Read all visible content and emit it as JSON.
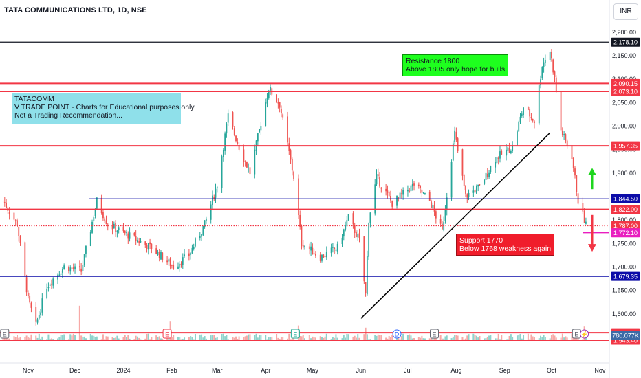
{
  "header": {
    "symbol_title": "TATA COMMUNICATIONS LTD, 1D, NSE",
    "currency": "INR"
  },
  "notes": {
    "info": [
      "TATACOMM",
      "V TRADE POINT - Charts for Educational purposes only.",
      "Not a Trading Recommendation..."
    ],
    "resistance": [
      "Resistance 1800",
      "Above 1805 only hope for bulls"
    ],
    "support": [
      "Support 1770",
      "Below 1768 weakness again"
    ]
  },
  "colors": {
    "up": "#26a69a",
    "down": "#ef5350",
    "vol_up": "#8fd3cc",
    "vol_down": "#f7a9a7",
    "red_line": "#f23645",
    "blue_line": "#0c0ca8",
    "magenta": "#e91ebf",
    "green_arrow": "#1fd61f",
    "trend_line": "#000000",
    "axis_text": "#131722"
  },
  "chart_data": {
    "type": "candlestick",
    "ylim": [
      1520,
      2215
    ],
    "y_ticks": [
      1600,
      1650,
      1700,
      1750,
      1800,
      1850,
      1900,
      1950,
      2000,
      2050,
      2100,
      2150,
      2200
    ],
    "y_tick_labels": [
      "1,600.00",
      "1,650.00",
      "1,700.00",
      "1,750.00",
      "1,800.00",
      "1,850.00",
      "1,900.00",
      "1,950.00",
      "2,000.00",
      "2,050.00",
      "2,100.00",
      "2,150.00",
      "2,200.00"
    ],
    "x_range": [
      "2023-10-14",
      "2024-11-07"
    ],
    "x_ticks": [
      {
        "date": "2023-11-01",
        "label": "Nov"
      },
      {
        "date": "2023-12-01",
        "label": "Dec"
      },
      {
        "date": "2024-01-01",
        "label": "2024"
      },
      {
        "date": "2024-02-01",
        "label": "Feb"
      },
      {
        "date": "2024-03-01",
        "label": "Mar"
      },
      {
        "date": "2024-04-01",
        "label": "Apr"
      },
      {
        "date": "2024-05-01",
        "label": "May"
      },
      {
        "date": "2024-06-01",
        "label": "Jun"
      },
      {
        "date": "2024-07-01",
        "label": "Jul"
      },
      {
        "date": "2024-08-01",
        "label": "Aug"
      },
      {
        "date": "2024-09-01",
        "label": "Sep"
      },
      {
        "date": "2024-10-01",
        "label": "Oct"
      },
      {
        "date": "2024-11-01",
        "label": "Nov"
      }
    ],
    "price_path": [
      {
        "date": "2023-10-16",
        "close": 1840
      },
      {
        "date": "2023-10-25",
        "close": 1790
      },
      {
        "date": "2023-11-01",
        "close": 1630
      },
      {
        "date": "2023-11-06",
        "close": 1575
      },
      {
        "date": "2023-11-13",
        "close": 1660
      },
      {
        "date": "2023-11-24",
        "close": 1700
      },
      {
        "date": "2023-12-05",
        "close": 1690
      },
      {
        "date": "2023-12-15",
        "close": 1840
      },
      {
        "date": "2023-12-22",
        "close": 1790
      },
      {
        "date": "2024-01-05",
        "close": 1765
      },
      {
        "date": "2024-01-19",
        "close": 1740
      },
      {
        "date": "2024-02-02",
        "close": 1700
      },
      {
        "date": "2024-02-12",
        "close": 1725
      },
      {
        "date": "2024-02-22",
        "close": 1790
      },
      {
        "date": "2024-03-01",
        "close": 1875
      },
      {
        "date": "2024-03-08",
        "close": 2020
      },
      {
        "date": "2024-03-15",
        "close": 1955
      },
      {
        "date": "2024-03-22",
        "close": 1900
      },
      {
        "date": "2024-04-03",
        "close": 2080
      },
      {
        "date": "2024-04-10",
        "close": 2045
      },
      {
        "date": "2024-04-19",
        "close": 1890
      },
      {
        "date": "2024-04-24",
        "close": 1750
      },
      {
        "date": "2024-05-06",
        "close": 1720
      },
      {
        "date": "2024-05-17",
        "close": 1740
      },
      {
        "date": "2024-05-24",
        "close": 1805
      },
      {
        "date": "2024-05-31",
        "close": 1755
      },
      {
        "date": "2024-06-04",
        "close": 1640
      },
      {
        "date": "2024-06-06",
        "close": 1800
      },
      {
        "date": "2024-06-11",
        "close": 1890
      },
      {
        "date": "2024-06-21",
        "close": 1835
      },
      {
        "date": "2024-07-05",
        "close": 1875
      },
      {
        "date": "2024-07-15",
        "close": 1840
      },
      {
        "date": "2024-07-23",
        "close": 1775
      },
      {
        "date": "2024-07-31",
        "close": 1985
      },
      {
        "date": "2024-08-07",
        "close": 1850
      },
      {
        "date": "2024-08-16",
        "close": 1870
      },
      {
        "date": "2024-08-26",
        "close": 1930
      },
      {
        "date": "2024-09-06",
        "close": 1955
      },
      {
        "date": "2024-09-13",
        "close": 2040
      },
      {
        "date": "2024-09-20",
        "close": 2010
      },
      {
        "date": "2024-09-25",
        "close": 2130
      },
      {
        "date": "2024-09-30",
        "close": 2160
      },
      {
        "date": "2024-10-03",
        "close": 2100
      },
      {
        "date": "2024-10-07",
        "close": 1990
      },
      {
        "date": "2024-10-14",
        "close": 1935
      },
      {
        "date": "2024-10-18",
        "close": 1840
      },
      {
        "date": "2024-10-23",
        "close": 1790
      }
    ],
    "horizontal_levels": [
      {
        "value": 2178.1,
        "label": "2,178.10",
        "color": "#131722",
        "line_color": "#131722",
        "x_start": "2023-10-14"
      },
      {
        "value": 2090.15,
        "label": "2,090.15",
        "color": "#f23645",
        "line_color": "#f23645",
        "x_start": "2023-10-14"
      },
      {
        "value": 2073.1,
        "label": "2,073.10",
        "color": "#f23645",
        "line_color": "#f23645",
        "x_start": "2023-10-14"
      },
      {
        "value": 1957.35,
        "label": "1,957.35",
        "color": "#f23645",
        "line_color": "#f23645",
        "x_start": "2023-10-14"
      },
      {
        "value": 1844.5,
        "label": "1,844.50",
        "color": "#0c0ca8",
        "line_color": "#0c0ca8",
        "x_start": "2023-12-10"
      },
      {
        "value": 1822.0,
        "label": "1,822.00",
        "color": "#f23645",
        "line_color": "#f23645",
        "x_start": "2023-10-14"
      },
      {
        "value": 1787.0,
        "label": "1,787.00",
        "color": "#f23645",
        "line_color": "#f23645",
        "x_start": "2023-10-14",
        "dotted": true
      },
      {
        "value": 1772.1,
        "label": "1,772.10",
        "color": "#e91ebf",
        "line_color": "#e91ebf",
        "x_start": "2024-10-21"
      },
      {
        "value": 1679.35,
        "label": "1,679.35",
        "color": "#0c0ca8",
        "line_color": "#0c0ca8",
        "x_start": "2023-10-14"
      },
      {
        "value": 1559.25,
        "label": "1,559.25",
        "color": "#f23645",
        "line_color": "#f23645",
        "x_start": "2023-10-14"
      },
      {
        "value": 1543.4,
        "label": "1,543.40",
        "color": "#f23645",
        "line_color": "#f23645",
        "x_start": "2023-10-14"
      }
    ],
    "trend_line": {
      "from": {
        "date": "2024-06-01",
        "value": 1590
      },
      "to": {
        "date": "2024-09-30",
        "value": 1985
      }
    },
    "volume_label": "780.077K",
    "event_markers": [
      {
        "date": "2023-10-17",
        "letter": "E",
        "kind": "earnings"
      },
      {
        "date": "2024-01-29",
        "letter": "E",
        "kind": "earnings-red"
      },
      {
        "date": "2024-04-20",
        "letter": "E",
        "kind": "earnings-green"
      },
      {
        "date": "2024-06-24",
        "letter": "D",
        "kind": "dividend"
      },
      {
        "date": "2024-07-18",
        "letter": "E",
        "kind": "earnings"
      },
      {
        "date": "2024-10-17",
        "letter": "E",
        "kind": "earnings"
      },
      {
        "date": "2024-10-22",
        "letter": "⚡",
        "kind": "split"
      }
    ]
  }
}
